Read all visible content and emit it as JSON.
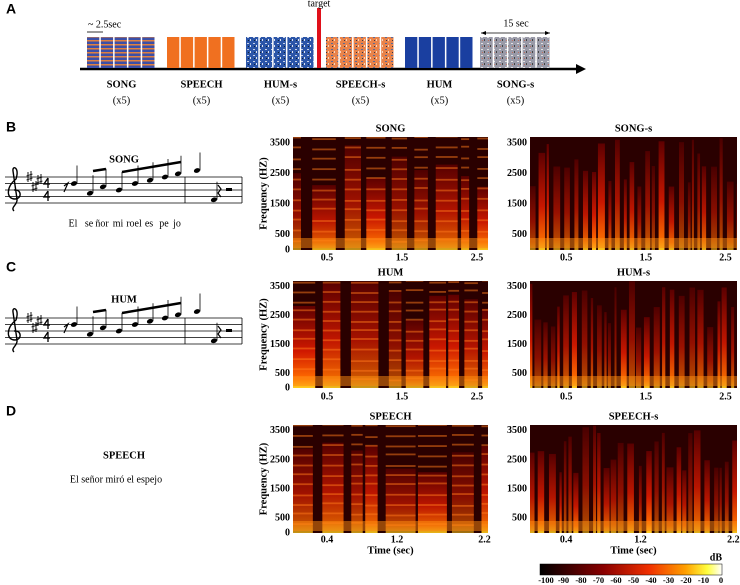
{
  "panel_labels": [
    "A",
    "B",
    "C",
    "D"
  ],
  "timeline": {
    "duration_label": "~ 2.5sec",
    "block_label": "15 sec",
    "target_label": "target",
    "blocks": [
      {
        "name": "SONG",
        "reps": "(x5)"
      },
      {
        "name": "SPEECH",
        "reps": "(x5)"
      },
      {
        "name": "HUM-s",
        "reps": "(x5)"
      },
      {
        "name": "SPEECH-s",
        "reps": "(x5)"
      },
      {
        "name": "HUM",
        "reps": "(x5)"
      },
      {
        "name": "SONG-s",
        "reps": "(x5)"
      }
    ]
  },
  "scores": [
    {
      "title": "SONG",
      "lyrics": [
        "El",
        "se",
        "ñor",
        "mi",
        "roel",
        "es",
        "pe",
        "jo"
      ]
    },
    {
      "title": "HUM"
    },
    {
      "title": "SPEECH",
      "text": "El señor miró el espejo"
    }
  ],
  "spectrograms": [
    {
      "title": "SONG",
      "y_label": "Frequency (HZ)",
      "yticks": [
        3500,
        2500,
        1500,
        500,
        0
      ],
      "xticks": [
        0.5,
        1.5,
        2.5
      ]
    },
    {
      "title": "SONG-s",
      "yticks": [
        3500,
        2500,
        1500,
        500
      ],
      "xticks": [
        0.5,
        1.5,
        2.5
      ]
    },
    {
      "title": "HUM",
      "y_label": "Frequency (HZ)",
      "yticks": [
        3500,
        2500,
        1500,
        500,
        0
      ],
      "xticks": [
        0.5,
        1.5,
        2.5
      ]
    },
    {
      "title": "HUM-s",
      "yticks": [
        3500,
        2500,
        1500,
        500
      ],
      "xticks": [
        0.5,
        1.5,
        2.5
      ]
    },
    {
      "title": "SPEECH",
      "y_label": "Frequency (HZ)",
      "x_label": "Time (sec)",
      "yticks": [
        3500,
        2500,
        1500,
        500,
        0
      ],
      "xticks": [
        0.4,
        1.2,
        2.2
      ]
    },
    {
      "title": "SPEECH-s",
      "x_label": "Time (sec)",
      "yticks": [
        3500,
        2500,
        1500,
        500
      ],
      "xticks": [
        0.4,
        1.2,
        2.2
      ]
    }
  ],
  "colorbar": {
    "label": "dB",
    "ticks": [
      -100,
      -90,
      -80,
      -70,
      -60,
      -50,
      -40,
      -30,
      -20,
      -10,
      0
    ]
  }
}
